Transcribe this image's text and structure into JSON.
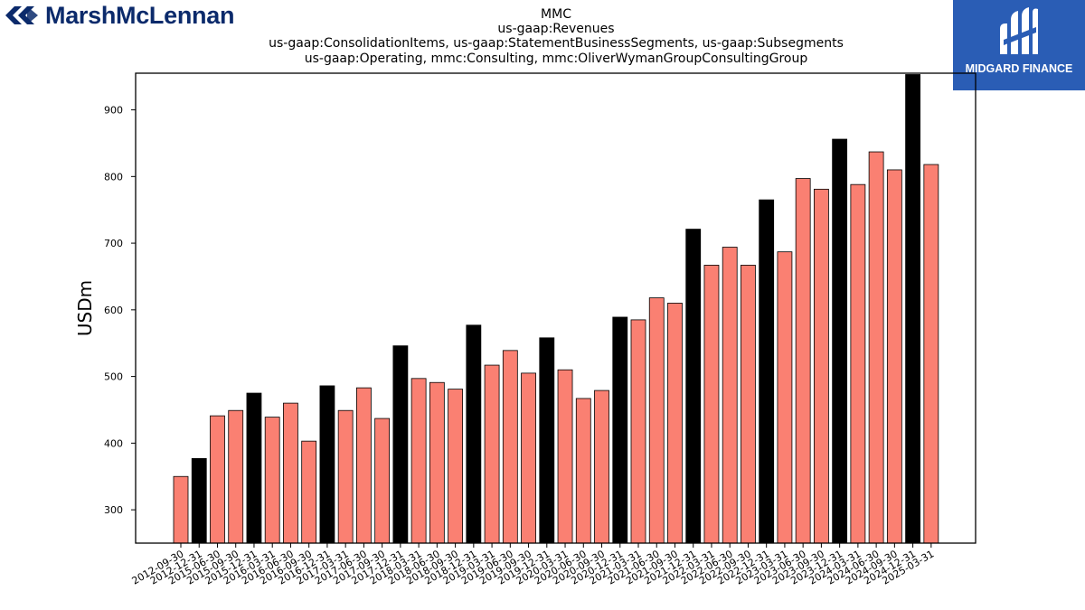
{
  "logos": {
    "left_brand": "MarshMcLennan",
    "right_brand": "MIDGARD FINANCE",
    "left_icon": "marsh-mclennan-chevron-icon",
    "right_icon": "midgard-finance-logo-icon",
    "right_background": "#2a5db5",
    "left_color": "#0b2a6b"
  },
  "chart_data": {
    "type": "bar",
    "title_lines": [
      "MMC",
      "us-gaap:Revenues",
      "us-gaap:ConsolidationItems, us-gaap:StatementBusinessSegments, us-gaap:Subsegments",
      "us-gaap:Operating, mmc:Consulting, mmc:OliverWymanGroupConsultingGroup"
    ],
    "xlabel": "",
    "ylabel": "USDm",
    "ylim": [
      250,
      955
    ],
    "yticks": [
      300,
      400,
      500,
      600,
      700,
      800,
      900
    ],
    "grid": false,
    "colors": {
      "quarter": "#fa8072",
      "year_end": "#000000",
      "edge": "#000000"
    },
    "categories": [
      "2012-09-30",
      "2012-12-31",
      "2015-06-30",
      "2015-09-30",
      "2015-12-31",
      "2016-03-31",
      "2016-06-30",
      "2016-09-30",
      "2016-12-31",
      "2017-03-31",
      "2017-06-30",
      "2017-09-30",
      "2017-12-31",
      "2018-03-31",
      "2018-06-30",
      "2018-09-30",
      "2018-12-31",
      "2019-03-31",
      "2019-06-30",
      "2019-09-30",
      "2019-12-31",
      "2020-03-31",
      "2020-06-30",
      "2020-09-30",
      "2020-12-31",
      "2021-03-31",
      "2021-06-30",
      "2021-09-30",
      "2021-12-31",
      "2022-03-31",
      "2022-06-30",
      "2022-09-30",
      "2022-12-31",
      "2023-03-31",
      "2023-06-30",
      "2023-09-30",
      "2023-12-31",
      "2024-03-31",
      "2024-06-30",
      "2024-09-30",
      "2024-12-31",
      "2025-03-31"
    ],
    "values": [
      350,
      377,
      441,
      449,
      475,
      439,
      460,
      403,
      486,
      449,
      483,
      437,
      546,
      497,
      491,
      481,
      577,
      517,
      539,
      505,
      558,
      510,
      467,
      479,
      589,
      585,
      618,
      610,
      721,
      667,
      694,
      667,
      765,
      687,
      797,
      781,
      856,
      788,
      837,
      810,
      953,
      818
    ],
    "year_end": [
      false,
      true,
      false,
      false,
      true,
      false,
      false,
      false,
      true,
      false,
      false,
      false,
      true,
      false,
      false,
      false,
      true,
      false,
      false,
      false,
      true,
      false,
      false,
      false,
      true,
      false,
      false,
      false,
      true,
      false,
      false,
      false,
      true,
      false,
      false,
      false,
      true,
      false,
      false,
      false,
      true,
      false
    ]
  }
}
